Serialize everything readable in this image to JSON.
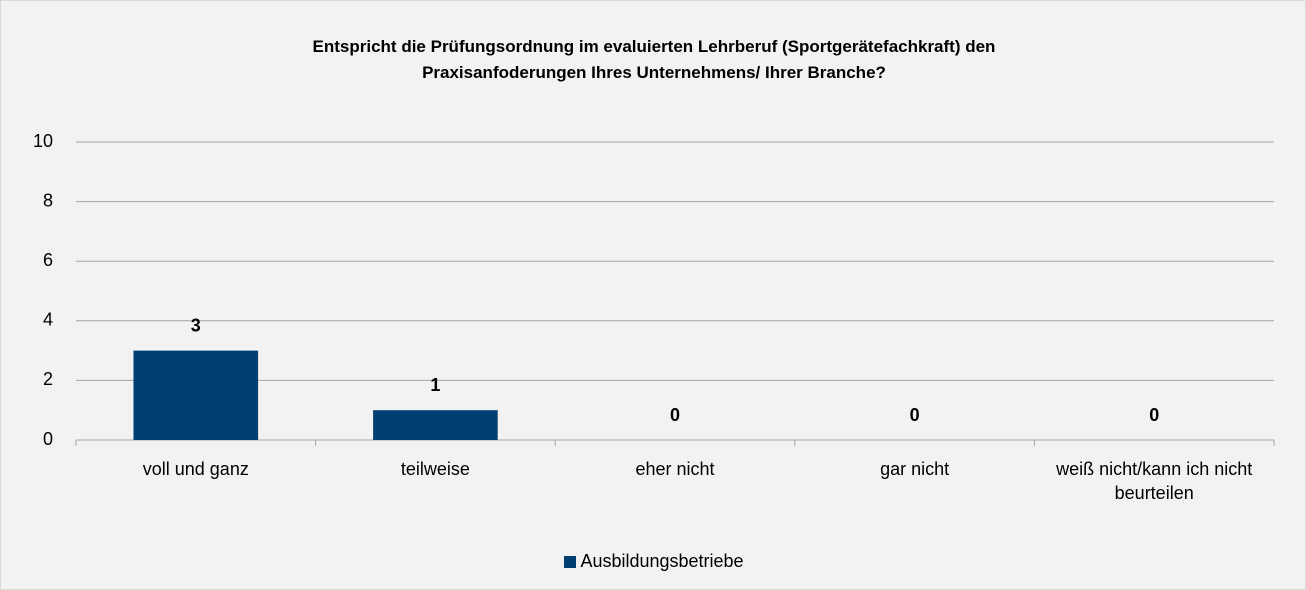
{
  "chart_data": {
    "type": "bar",
    "title": "Entspricht die Prüfungsordnung im evaluierten Lehrberuf (Sportgerätefachkraft) den Praxisanfoderungen Ihres Unternehmens/ Ihrer Branche?",
    "categories": [
      "voll und ganz",
      "teilweise",
      "eher nicht",
      "gar nicht",
      "weiß nicht/kann ich nicht beurteilen"
    ],
    "series": [
      {
        "name": "Ausbildungsbetriebe",
        "color": "#003f72",
        "values": [
          3,
          1,
          0,
          0,
          0
        ]
      }
    ],
    "ylim": [
      0,
      10
    ],
    "yticks": [
      0,
      2,
      4,
      6,
      8,
      10
    ],
    "grid": true,
    "legend": "bottom"
  }
}
